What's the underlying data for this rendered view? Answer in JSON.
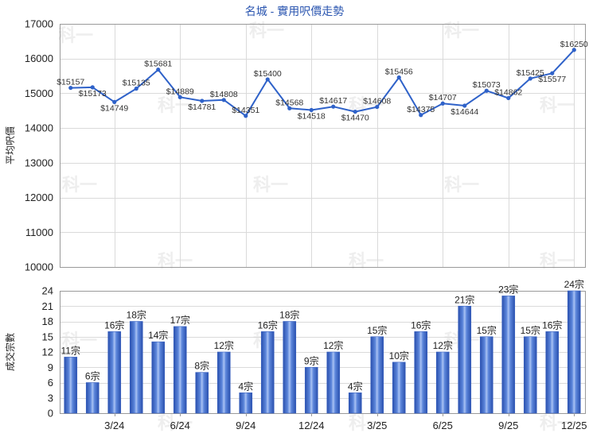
{
  "watermark": "科一",
  "colors": {
    "title": "#2b56b0",
    "line": "#2f62c9",
    "bar": "#3a62c0"
  },
  "chart_data": [
    {
      "type": "line",
      "title": "名城 - 實用呎價走勢",
      "ylabel": "平均呎價",
      "ylim": [
        10000,
        17000
      ],
      "yticks": [
        10000,
        11000,
        12000,
        13000,
        14000,
        15000,
        16000,
        17000
      ],
      "values": [
        15157,
        15173,
        14749,
        15135,
        15681,
        14889,
        14781,
        14808,
        14351,
        15400,
        14568,
        14518,
        14617,
        14470,
        14608,
        15456,
        14375,
        14707,
        14644,
        15073,
        14862,
        15425,
        15577,
        16250
      ],
      "data_labels": [
        "$15157",
        "$15173",
        "$14749",
        "$15135",
        "$15681",
        "$14889",
        "$14781",
        "$14808",
        "$14351",
        "$15400",
        "$14568",
        "$14518",
        "$14617",
        "$14470",
        "$14608",
        "$15456",
        "$14375",
        "$14707",
        "$14644",
        "$15073",
        "$14862",
        "$15425",
        "$15577",
        "$16250"
      ],
      "grid": true
    },
    {
      "type": "bar",
      "ylabel": "成交宗數",
      "ylim": [
        0,
        24
      ],
      "yticks": [
        0,
        3,
        6,
        9,
        12,
        15,
        18,
        21,
        24
      ],
      "categories": [
        "",
        "",
        "3/24",
        "",
        "",
        "6/24",
        "",
        "",
        "9/24",
        "",
        "",
        "12/24",
        "",
        "",
        "3/25",
        "",
        "",
        "6/25",
        "",
        "",
        "9/25",
        "",
        "",
        "12/25"
      ],
      "values": [
        11,
        6,
        16,
        18,
        14,
        17,
        8,
        12,
        4,
        16,
        18,
        9,
        12,
        4,
        15,
        10,
        16,
        12,
        21,
        15,
        23,
        15,
        16,
        24
      ],
      "data_labels": [
        "11宗",
        "6宗",
        "16宗",
        "18宗",
        "14宗",
        "17宗",
        "8宗",
        "12宗",
        "4宗",
        "16宗",
        "18宗",
        "9宗",
        "12宗",
        "4宗",
        "15宗",
        "10宗",
        "16宗",
        "12宗",
        "21宗",
        "15宗",
        "23宗",
        "15宗",
        "16宗",
        "24宗"
      ],
      "grid": true
    }
  ]
}
